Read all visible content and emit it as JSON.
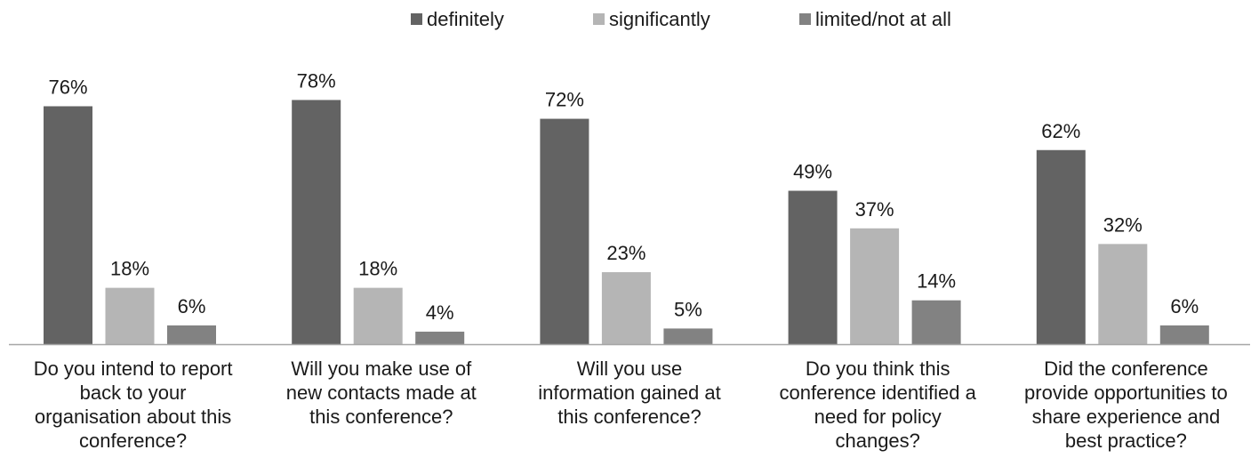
{
  "chart_data": {
    "type": "bar",
    "title": "",
    "xlabel": "",
    "ylabel": "",
    "ylim": [
      0,
      100
    ],
    "grid": false,
    "legend_position": "top",
    "categories": [
      [
        "Do you intend to report",
        "back to your",
        "organisation about this",
        "conference?"
      ],
      [
        "Will you make use of",
        "new contacts made at",
        "this conference?"
      ],
      [
        "Will you use",
        "information gained at",
        "this conference?"
      ],
      [
        "Do you think this",
        "conference identified a",
        "need for policy",
        "changes?"
      ],
      [
        "Did the conference",
        "provide opportunities to",
        "share experience and",
        "best practice?"
      ]
    ],
    "series": [
      {
        "name": "definitely",
        "color": "#636363",
        "values": [
          76,
          78,
          72,
          49,
          62
        ],
        "labels": [
          "76%",
          "78%",
          "72%",
          "49%",
          "62%"
        ]
      },
      {
        "name": "significantly",
        "color": "#b5b5b5",
        "values": [
          18,
          18,
          23,
          37,
          32
        ],
        "labels": [
          "18%",
          "18%",
          "23%",
          "37%",
          "32%"
        ]
      },
      {
        "name": "limited/not at all",
        "color": "#828282",
        "values": [
          6,
          4,
          5,
          14,
          6
        ],
        "labels": [
          "6%",
          "4%",
          "5%",
          "14%",
          "6%"
        ]
      }
    ]
  }
}
